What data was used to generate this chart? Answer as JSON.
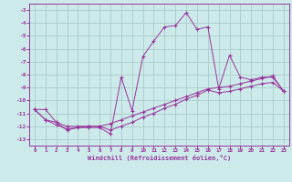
{
  "xlabel": "Windchill (Refroidissement éolien,°C)",
  "bg_color": "#cceaea",
  "line_color": "#993399",
  "grid_color": "#aacccc",
  "xlim": [
    -0.5,
    23.5
  ],
  "ylim": [
    -13.5,
    -2.5
  ],
  "yticks": [
    -13,
    -12,
    -11,
    -10,
    -9,
    -8,
    -7,
    -6,
    -5,
    -4,
    -3
  ],
  "xticks": [
    0,
    1,
    2,
    3,
    4,
    5,
    6,
    7,
    8,
    9,
    10,
    11,
    12,
    13,
    14,
    15,
    16,
    17,
    18,
    19,
    20,
    21,
    22,
    23
  ],
  "line1_x": [
    0,
    1,
    2,
    3,
    4,
    5,
    6,
    7,
    8,
    9,
    10,
    11,
    12,
    13,
    14,
    15,
    16,
    17,
    18,
    19,
    20,
    21,
    22,
    23
  ],
  "line1_y": [
    -10.7,
    -10.7,
    -11.7,
    -12.3,
    -12.1,
    -12.1,
    -12.1,
    -12.6,
    -8.2,
    -10.8,
    -6.6,
    -5.4,
    -4.3,
    -4.2,
    -3.2,
    -4.5,
    -4.3,
    -9.1,
    -6.5,
    -8.2,
    -8.4,
    -8.2,
    -8.2,
    -9.3
  ],
  "line2_x": [
    0,
    1,
    2,
    3,
    4,
    5,
    6,
    7,
    8,
    9,
    10,
    11,
    12,
    13,
    14,
    15,
    16,
    17,
    18,
    19,
    20,
    21,
    22,
    23
  ],
  "line2_y": [
    -10.7,
    -11.5,
    -11.7,
    -12.0,
    -12.0,
    -12.0,
    -12.0,
    -11.8,
    -11.5,
    -11.2,
    -10.9,
    -10.6,
    -10.3,
    -10.0,
    -9.7,
    -9.4,
    -9.1,
    -9.0,
    -8.9,
    -8.7,
    -8.5,
    -8.3,
    -8.1,
    -9.3
  ],
  "line3_x": [
    0,
    1,
    2,
    3,
    4,
    5,
    6,
    7,
    8,
    9,
    10,
    11,
    12,
    13,
    14,
    15,
    16,
    17,
    18,
    19,
    20,
    21,
    22,
    23
  ],
  "line3_y": [
    -10.7,
    -11.5,
    -11.9,
    -12.2,
    -12.1,
    -12.0,
    -12.0,
    -12.3,
    -12.0,
    -11.7,
    -11.3,
    -11.0,
    -10.6,
    -10.3,
    -9.9,
    -9.6,
    -9.2,
    -9.4,
    -9.3,
    -9.1,
    -8.9,
    -8.7,
    -8.6,
    -9.3
  ]
}
